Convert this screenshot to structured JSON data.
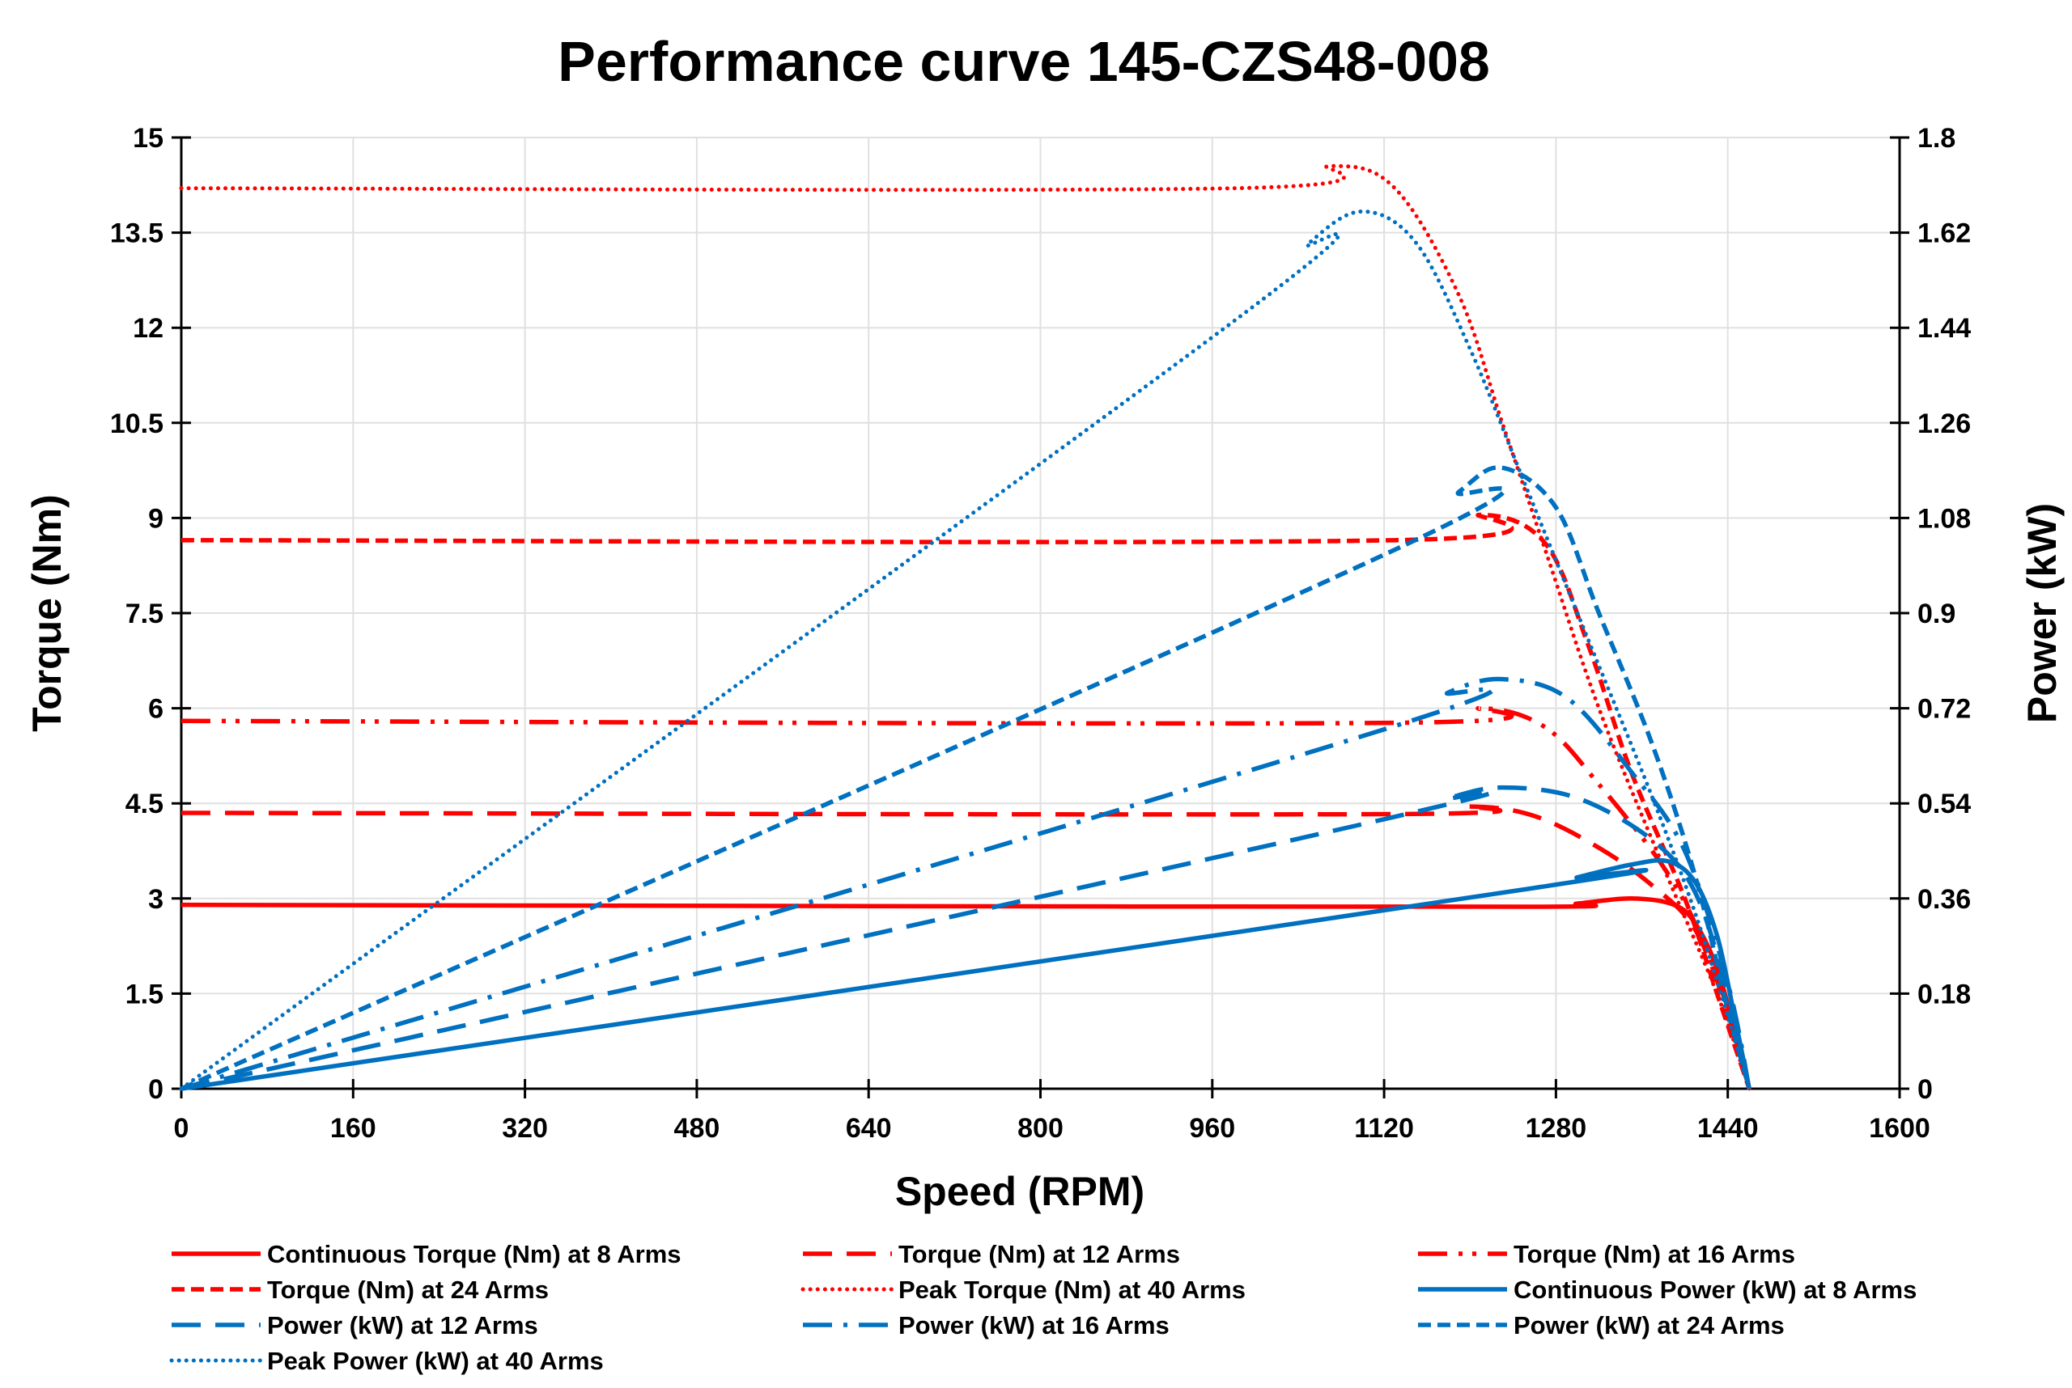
{
  "chart_data": {
    "type": "line",
    "title": "Performance curve 145-CZS48-008",
    "xlabel": "Speed (RPM)",
    "ylabel": "Torque (Nm)",
    "y2label": "Power (kW)",
    "xlim": [
      0,
      1600
    ],
    "ylim": [
      0,
      15
    ],
    "y2lim": [
      0,
      1.8
    ],
    "xticks": [
      "0",
      "160",
      "320",
      "480",
      "640",
      "800",
      "960",
      "1120",
      "1280",
      "1440",
      "1600"
    ],
    "yticks": [
      "0",
      "1.5",
      "3",
      "4.5",
      "6",
      "7.5",
      "9",
      "10.5",
      "12",
      "13.5",
      "15"
    ],
    "y2ticks": [
      "0",
      "0.18",
      "0.36",
      "0.54",
      "0.72",
      "0.9",
      "1.08",
      "1.26",
      "1.44",
      "1.62",
      "1.8"
    ],
    "grid": true,
    "legend_position": "bottom",
    "colors": {
      "torque": "#ff0000",
      "power": "#0070c0"
    },
    "series": [
      {
        "name": "Continuous Torque (Nm) at 8 Arms",
        "axis": "left",
        "color": "#ff0000",
        "style": "solid",
        "points": [
          [
            0,
            2.9
          ],
          [
            640,
            2.88
          ],
          [
            1260,
            2.87
          ],
          [
            1300,
            2.92
          ],
          [
            1350,
            3.0
          ],
          [
            1390,
            2.9
          ],
          [
            1410,
            2.6
          ],
          [
            1430,
            1.9
          ],
          [
            1445,
            1.0
          ],
          [
            1460,
            0
          ]
        ]
      },
      {
        "name": "Torque (Nm) at 12 Arms",
        "axis": "left",
        "color": "#ff0000",
        "style": "long-dash",
        "points": [
          [
            0,
            4.35
          ],
          [
            1120,
            4.33
          ],
          [
            1200,
            4.45
          ],
          [
            1260,
            4.3
          ],
          [
            1320,
            3.8
          ],
          [
            1370,
            3.2
          ],
          [
            1410,
            2.5
          ],
          [
            1440,
            1.2
          ],
          [
            1460,
            0
          ]
        ]
      },
      {
        "name": "Torque (Nm) at 16 Arms",
        "axis": "left",
        "color": "#ff0000",
        "style": "long-dash-dot-dot",
        "points": [
          [
            0,
            5.8
          ],
          [
            1130,
            5.77
          ],
          [
            1210,
            6.0
          ],
          [
            1270,
            5.7
          ],
          [
            1320,
            4.8
          ],
          [
            1380,
            3.5
          ],
          [
            1415,
            2.4
          ],
          [
            1445,
            1.0
          ],
          [
            1460,
            0
          ]
        ]
      },
      {
        "name": "Torque (Nm) at 24 Arms",
        "axis": "left",
        "color": "#ff0000",
        "style": "short-dash",
        "points": [
          [
            0,
            8.65
          ],
          [
            1130,
            8.65
          ],
          [
            1210,
            9.05
          ],
          [
            1270,
            8.6
          ],
          [
            1310,
            7.0
          ],
          [
            1350,
            5.0
          ],
          [
            1400,
            3.0
          ],
          [
            1430,
            1.5
          ],
          [
            1460,
            0
          ]
        ]
      },
      {
        "name": "Peak Torque (Nm) at 40 Arms",
        "axis": "left",
        "color": "#ff0000",
        "style": "dotted",
        "points": [
          [
            0,
            14.2
          ],
          [
            980,
            14.2
          ],
          [
            1070,
            14.55
          ],
          [
            1130,
            14.2
          ],
          [
            1190,
            12.5
          ],
          [
            1230,
            10.5
          ],
          [
            1270,
            8.5
          ],
          [
            1320,
            6.0
          ],
          [
            1380,
            3.5
          ],
          [
            1430,
            1.5
          ],
          [
            1460,
            0
          ]
        ]
      },
      {
        "name": "Continuous Power (kW) at 8 Arms",
        "axis": "right",
        "color": "#0070c0",
        "style": "solid",
        "points": [
          [
            0,
            0
          ],
          [
            1260,
            0.38
          ],
          [
            1300,
            0.4
          ],
          [
            1350,
            0.424
          ],
          [
            1385,
            0.43
          ],
          [
            1410,
            0.39
          ],
          [
            1430,
            0.29
          ],
          [
            1445,
            0.15
          ],
          [
            1460,
            0
          ]
        ]
      },
      {
        "name": "Power (kW) at 12 Arms",
        "axis": "right",
        "color": "#0070c0",
        "style": "long-dash",
        "points": [
          [
            0,
            0
          ],
          [
            1120,
            0.51
          ],
          [
            1180,
            0.55
          ],
          [
            1230,
            0.57
          ],
          [
            1300,
            0.55
          ],
          [
            1370,
            0.47
          ],
          [
            1410,
            0.37
          ],
          [
            1440,
            0.18
          ],
          [
            1460,
            0
          ]
        ]
      },
      {
        "name": "Power (kW) at 16 Arms",
        "axis": "right",
        "color": "#0070c0",
        "style": "long-dash-dot",
        "points": [
          [
            0,
            0
          ],
          [
            1120,
            0.68
          ],
          [
            1180,
            0.75
          ],
          [
            1230,
            0.775
          ],
          [
            1290,
            0.74
          ],
          [
            1350,
            0.6
          ],
          [
            1400,
            0.45
          ],
          [
            1440,
            0.2
          ],
          [
            1460,
            0
          ]
        ]
      },
      {
        "name": "Power (kW) at 24 Arms",
        "axis": "right",
        "color": "#0070c0",
        "style": "short-dash",
        "points": [
          [
            0,
            0
          ],
          [
            1130,
            1.02
          ],
          [
            1190,
            1.13
          ],
          [
            1230,
            1.175
          ],
          [
            1280,
            1.1
          ],
          [
            1320,
            0.9
          ],
          [
            1370,
            0.65
          ],
          [
            1410,
            0.4
          ],
          [
            1440,
            0.15
          ],
          [
            1460,
            0
          ]
        ]
      },
      {
        "name": "Peak Power (kW) at 40 Arms",
        "axis": "right",
        "color": "#0070c0",
        "style": "dotted",
        "points": [
          [
            0,
            0
          ],
          [
            985,
            1.46
          ],
          [
            1050,
            1.6
          ],
          [
            1100,
            1.66
          ],
          [
            1150,
            1.6
          ],
          [
            1200,
            1.4
          ],
          [
            1250,
            1.15
          ],
          [
            1310,
            0.85
          ],
          [
            1370,
            0.55
          ],
          [
            1415,
            0.3
          ],
          [
            1460,
            0
          ]
        ]
      }
    ]
  }
}
